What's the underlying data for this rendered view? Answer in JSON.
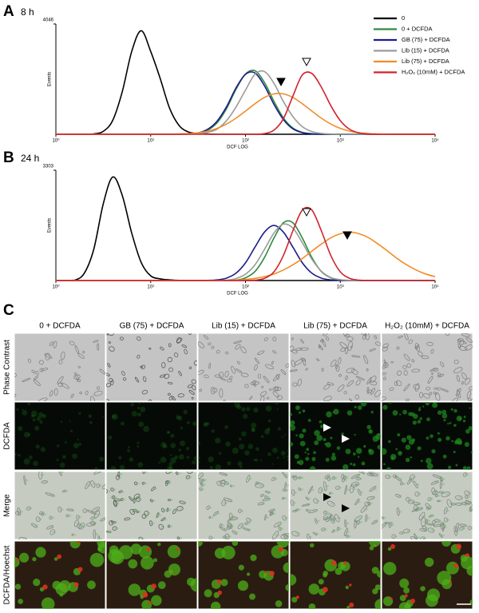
{
  "chart_data": [
    {
      "type": "line",
      "panel": "A",
      "title": "8 h",
      "xlabel": "DCF LOG",
      "ylabel": "Events",
      "xscale": "log",
      "xlim": [
        1,
        10000
      ],
      "xticks": [
        {
          "value": 1,
          "label": "10⁰"
        },
        {
          "value": 10,
          "label": "10¹"
        },
        {
          "value": 100,
          "label": "10²"
        },
        {
          "value": 1000,
          "label": "10³"
        },
        {
          "value": 10000,
          "label": "10⁴"
        }
      ],
      "ylim": [
        0,
        4046
      ],
      "yticks": [
        4046
      ],
      "legend": "upper right",
      "x": [
        1,
        1.259,
        1.585,
        1.995,
        2.512,
        3.162,
        3.981,
        5.012,
        6.31,
        7.943,
        10,
        12.59,
        15.85,
        19.95,
        25.12,
        31.62,
        39.81,
        50.12,
        63.1,
        79.43,
        100,
        125.9,
        158.5,
        199.5,
        251.2,
        316.2,
        398.1,
        501.2,
        631,
        794.3,
        1000,
        1259,
        1585,
        1995,
        2512,
        3162,
        3981,
        5012,
        6310,
        7943,
        10000
      ],
      "series": [
        {
          "name": "0",
          "color": "#000000",
          "values": [
            0,
            0,
            0,
            0,
            15,
            107,
            513,
            1560,
            3040,
            3800,
            3040,
            2050,
            950,
            320,
            80,
            30,
            10,
            0,
            0,
            0,
            0,
            0,
            0,
            0,
            0,
            0,
            0,
            0,
            0,
            0,
            0,
            0,
            0,
            0,
            0,
            0,
            0,
            0,
            0,
            0,
            0
          ]
        },
        {
          "name": "0 + DCFDA",
          "color": "#2e8b3e",
          "values": [
            0,
            0,
            0,
            0,
            0,
            0,
            0,
            0,
            0,
            0,
            0,
            0,
            0,
            0,
            10,
            40,
            150,
            420,
            940,
            1650,
            2210,
            2330,
            1900,
            1210,
            600,
            230,
            70,
            20,
            0,
            0,
            0,
            0,
            0,
            0,
            0,
            0,
            0,
            0,
            0,
            0,
            0
          ]
        },
        {
          "name": "GB (75) + DCFDA",
          "color": "#1c1c8c",
          "values": [
            0,
            0,
            0,
            0,
            0,
            0,
            0,
            0,
            0,
            0,
            0,
            0,
            0,
            0,
            15,
            50,
            180,
            480,
            1010,
            1700,
            2200,
            2250,
            1780,
            1100,
            540,
            200,
            60,
            15,
            0,
            0,
            0,
            0,
            0,
            0,
            0,
            0,
            0,
            0,
            0,
            0,
            0
          ]
        },
        {
          "name": "Lib (15) + DCFDA",
          "color": "#9a9a9a",
          "values": [
            0,
            0,
            0,
            0,
            0,
            0,
            0,
            0,
            0,
            0,
            0,
            0,
            0,
            0,
            5,
            20,
            70,
            190,
            500,
            1000,
            1620,
            2200,
            2300,
            1870,
            1200,
            650,
            280,
            100,
            30,
            10,
            0,
            0,
            0,
            0,
            0,
            0,
            0,
            0,
            0,
            0,
            0
          ]
        },
        {
          "name": "Lib (75) + DCFDA",
          "color": "#f28c28",
          "values": [
            0,
            0,
            0,
            0,
            0,
            0,
            0,
            0,
            0,
            0,
            0,
            0,
            0,
            10,
            24,
            54,
            114,
            215,
            375,
            590,
            850,
            1120,
            1350,
            1480,
            1480,
            1350,
            1120,
            850,
            590,
            375,
            215,
            114,
            54,
            24,
            10,
            0,
            0,
            0,
            0,
            0,
            0
          ]
        },
        {
          "name": "H₂O₂ (10mM) + DCFDA",
          "color": "#d2232a",
          "values": [
            0,
            0,
            0,
            0,
            0,
            0,
            0,
            0,
            0,
            0,
            0,
            0,
            0,
            0,
            0,
            0,
            0,
            0,
            0,
            0,
            0,
            0,
            25,
            150,
            570,
            1400,
            2180,
            2230,
            1730,
            1050,
            500,
            180,
            50,
            10,
            0,
            0,
            0,
            0,
            0,
            0,
            0
          ]
        }
      ]
    },
    {
      "type": "line",
      "panel": "B",
      "title": "24 h",
      "xlabel": "DCF LOG",
      "ylabel": "Events",
      "xscale": "log",
      "xlim": [
        1,
        10000
      ],
      "xticks": [
        {
          "value": 1,
          "label": "10⁰"
        },
        {
          "value": 10,
          "label": "10¹"
        },
        {
          "value": 100,
          "label": "10²"
        },
        {
          "value": 1000,
          "label": "10³"
        },
        {
          "value": 10000,
          "label": "10⁴"
        }
      ],
      "ylim": [
        0,
        3303
      ],
      "yticks": [
        3303
      ],
      "x": [
        1,
        1.259,
        1.585,
        1.995,
        2.512,
        3.162,
        3.981,
        5.012,
        6.31,
        7.943,
        10,
        12.59,
        15.85,
        19.95,
        25.12,
        31.62,
        39.81,
        50.12,
        63.1,
        79.43,
        100,
        125.9,
        158.5,
        199.5,
        251.2,
        316.2,
        398.1,
        501.2,
        631,
        794.3,
        1000,
        1259,
        1585,
        1995,
        2512,
        3162,
        3981,
        5012,
        6310,
        7943,
        10000
      ],
      "series": [
        {
          "color": "#000000",
          "values": [
            0,
            0,
            10,
            220,
            940,
            2300,
            3100,
            2550,
            1420,
            540,
            140,
            50,
            20,
            5,
            0,
            0,
            0,
            0,
            0,
            0,
            0,
            0,
            0,
            0,
            0,
            0,
            0,
            0,
            0,
            0,
            0,
            0,
            0,
            0,
            0,
            0,
            0,
            0,
            0,
            0,
            0
          ]
        },
        {
          "color": "#2e8b3e",
          "values": [
            0,
            0,
            0,
            0,
            0,
            0,
            0,
            0,
            0,
            0,
            0,
            0,
            0,
            0,
            0,
            0,
            0,
            0,
            0,
            10,
            80,
            270,
            690,
            1270,
            1730,
            1730,
            1270,
            690,
            270,
            80,
            20,
            5,
            0,
            0,
            0,
            0,
            0,
            0,
            0,
            0,
            0
          ]
        },
        {
          "color": "#1c1c8c",
          "values": [
            0,
            0,
            0,
            0,
            0,
            0,
            0,
            0,
            0,
            0,
            0,
            0,
            0,
            0,
            0,
            0,
            5,
            20,
            73,
            220,
            530,
            1000,
            1450,
            1650,
            1450,
            1000,
            530,
            220,
            73,
            20,
            5,
            0,
            0,
            0,
            0,
            0,
            0,
            0,
            0,
            0,
            0
          ]
        },
        {
          "color": "#9a9a9a",
          "values": [
            0,
            0,
            0,
            0,
            0,
            0,
            0,
            0,
            0,
            0,
            0,
            0,
            0,
            0,
            0,
            0,
            0,
            0,
            10,
            60,
            190,
            470,
            930,
            1420,
            1690,
            1570,
            1130,
            640,
            280,
            90,
            25,
            5,
            0,
            0,
            0,
            0,
            0,
            0,
            0,
            0,
            0
          ]
        },
        {
          "color": "#f28c28",
          "values": [
            0,
            0,
            0,
            0,
            0,
            0,
            0,
            0,
            0,
            0,
            0,
            0,
            0,
            0,
            0,
            0,
            0,
            0,
            5,
            15,
            33,
            64,
            116,
            196,
            315,
            470,
            660,
            880,
            1090,
            1280,
            1400,
            1450,
            1400,
            1280,
            1090,
            880,
            660,
            470,
            315,
            196,
            116
          ]
        },
        {
          "color": "#d2232a",
          "values": [
            0,
            0,
            0,
            0,
            0,
            0,
            0,
            0,
            0,
            0,
            0,
            0,
            0,
            0,
            0,
            0,
            0,
            0,
            0,
            0,
            0,
            10,
            65,
            260,
            750,
            1490,
            2110,
            2110,
            1490,
            750,
            260,
            65,
            10,
            0,
            0,
            0,
            0,
            0,
            0,
            0,
            0
          ]
        }
      ]
    }
  ],
  "panel_c": {
    "label": "C",
    "columns": [
      "0 + DCFDA",
      "GB (75) + DCFDA",
      "Lib (15) + DCFDA",
      "Lib (75) + DCFDA",
      "H₂O₂ (10mM) + DCFDA"
    ],
    "rows": [
      "Phase Contrast",
      "DCFDA",
      "Merge",
      "DCFDA/Hoechst"
    ]
  }
}
